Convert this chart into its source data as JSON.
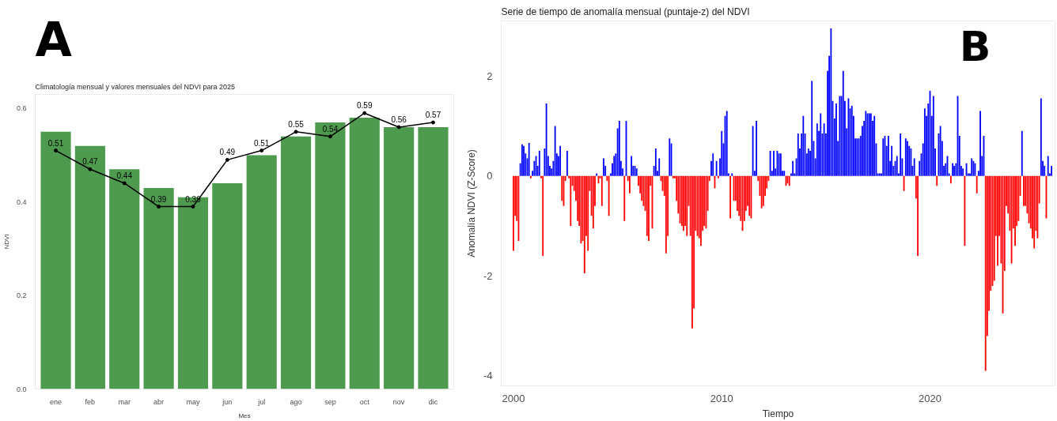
{
  "chart_data": [
    {
      "type": "bar",
      "title": "Climatología mensual y valores mensuales del NDVI para 2025",
      "annotations": [
        "A"
      ],
      "xlabel": "Mes",
      "ylabel": "NDVI",
      "categories": [
        "ene",
        "feb",
        "mar",
        "abr",
        "may",
        "jun",
        "jul",
        "ago",
        "sep",
        "oct",
        "nov",
        "dic"
      ],
      "ylim": [
        0,
        0.63
      ],
      "yticks": [
        {
          "value": 0,
          "label": "0.0"
        },
        {
          "value": 0.2,
          "label": "0.2"
        },
        {
          "value": 0.4,
          "label": "0.4"
        },
        {
          "value": 0.6,
          "label": "0.6"
        }
      ],
      "series": [
        {
          "type": "bar",
          "color": "#4e9a4e",
          "values": [
            0.55,
            0.52,
            0.47,
            0.43,
            0.41,
            0.44,
            0.5,
            0.54,
            0.57,
            0.58,
            0.56,
            0.56
          ]
        },
        {
          "type": "line",
          "color": "#000000",
          "marker": "circle",
          "values": [
            0.51,
            0.47,
            0.44,
            0.39,
            0.39,
            0.49,
            0.51,
            0.55,
            0.54,
            0.59,
            0.56,
            0.57
          ],
          "value_labels": [
            "0.51",
            "0.47",
            "0.44",
            "0.39",
            "0.39",
            "0.49",
            "0.51",
            "0.55",
            "0.54",
            "0.59",
            "0.56",
            "0.57"
          ]
        }
      ]
    },
    {
      "type": "bar",
      "title": "Serie de tiempo de anomalía mensual (puntaje-z) del NDVI",
      "annotations": [
        "B"
      ],
      "xlabel": "Tiempo",
      "ylabel": "Anomalía NDVI (Z-Score)",
      "xlim": [
        "1999-06",
        "2026-01"
      ],
      "xticks": [
        {
          "value": "2000",
          "label": "2000"
        },
        {
          "value": "2010",
          "label": "2010"
        },
        {
          "value": "2020",
          "label": "2020"
        }
      ],
      "ylim": [
        -4.2,
        3.1
      ],
      "yticks": [
        -4,
        -2,
        0,
        2
      ],
      "x": [
        "2000-01",
        "2000-02",
        "2000-03",
        "2000-04",
        "2000-05",
        "2000-06",
        "2000-07",
        "2000-08",
        "2000-09",
        "2000-10",
        "2000-11",
        "2000-12",
        "2001-01",
        "2001-02",
        "2001-03",
        "2001-04",
        "2001-05",
        "2001-06",
        "2001-07",
        "2001-08",
        "2001-09",
        "2001-10",
        "2001-11",
        "2001-12",
        "2002-01",
        "2002-02",
        "2002-03",
        "2002-04",
        "2002-05",
        "2002-06",
        "2002-07",
        "2002-08",
        "2002-09",
        "2002-10",
        "2002-11",
        "2002-12",
        "2003-01",
        "2003-02",
        "2003-03",
        "2003-04",
        "2003-05",
        "2003-06",
        "2003-07",
        "2003-08",
        "2003-09",
        "2003-10",
        "2003-11",
        "2003-12",
        "2004-01",
        "2004-02",
        "2004-03",
        "2004-04",
        "2004-05",
        "2004-06",
        "2004-07",
        "2004-08",
        "2004-09",
        "2004-10",
        "2004-11",
        "2004-12",
        "2005-01",
        "2005-02",
        "2005-03",
        "2005-04",
        "2005-05",
        "2005-06",
        "2005-07",
        "2005-08",
        "2005-09",
        "2005-10",
        "2005-11",
        "2005-12",
        "2006-01",
        "2006-02",
        "2006-03",
        "2006-04",
        "2006-05",
        "2006-06",
        "2006-07",
        "2006-08",
        "2006-09",
        "2006-10",
        "2006-11",
        "2006-12",
        "2007-01",
        "2007-02",
        "2007-03",
        "2007-04",
        "2007-05",
        "2007-06",
        "2007-07",
        "2007-08",
        "2007-09",
        "2007-10",
        "2007-11",
        "2007-12",
        "2008-01",
        "2008-02",
        "2008-03",
        "2008-04",
        "2008-05",
        "2008-06",
        "2008-07",
        "2008-08",
        "2008-09",
        "2008-10",
        "2008-11",
        "2008-12",
        "2009-01",
        "2009-02",
        "2009-03",
        "2009-04",
        "2009-05",
        "2009-06",
        "2009-07",
        "2009-08",
        "2009-09",
        "2009-10",
        "2009-11",
        "2009-12",
        "2010-01",
        "2010-02",
        "2010-03",
        "2010-04",
        "2010-05",
        "2010-06",
        "2010-07",
        "2010-08",
        "2010-09",
        "2010-10",
        "2010-11",
        "2010-12",
        "2011-01",
        "2011-02",
        "2011-03",
        "2011-04",
        "2011-05",
        "2011-06",
        "2011-07",
        "2011-08",
        "2011-09",
        "2011-10",
        "2011-11",
        "2011-12",
        "2012-01",
        "2012-02",
        "2012-03",
        "2012-04",
        "2012-05",
        "2012-06",
        "2012-07",
        "2012-08",
        "2012-09",
        "2012-10",
        "2012-11",
        "2012-12",
        "2013-01",
        "2013-02",
        "2013-03",
        "2013-04",
        "2013-05",
        "2013-06",
        "2013-07",
        "2013-08",
        "2013-09",
        "2013-10",
        "2013-11",
        "2013-12",
        "2014-01",
        "2014-02",
        "2014-03",
        "2014-04",
        "2014-05",
        "2014-06",
        "2014-07",
        "2014-08",
        "2014-09",
        "2014-10",
        "2014-11",
        "2014-12",
        "2015-01",
        "2015-02",
        "2015-03",
        "2015-04",
        "2015-05",
        "2015-06",
        "2015-07",
        "2015-08",
        "2015-09",
        "2015-10",
        "2015-11",
        "2015-12",
        "2016-01",
        "2016-02",
        "2016-03",
        "2016-04",
        "2016-05",
        "2016-06",
        "2016-07",
        "2016-08",
        "2016-09",
        "2016-10",
        "2016-11",
        "2016-12",
        "2017-01",
        "2017-02",
        "2017-03",
        "2017-04",
        "2017-05",
        "2017-06",
        "2017-07",
        "2017-08",
        "2017-09",
        "2017-10",
        "2017-11",
        "2017-12",
        "2018-01",
        "2018-02",
        "2018-03",
        "2018-04",
        "2018-05",
        "2018-06",
        "2018-07",
        "2018-08",
        "2018-09",
        "2018-10",
        "2018-11",
        "2018-12",
        "2019-01",
        "2019-02",
        "2019-03",
        "2019-04",
        "2019-05",
        "2019-06",
        "2019-07",
        "2019-08",
        "2019-09",
        "2019-10",
        "2019-11",
        "2019-12",
        "2020-01",
        "2020-02",
        "2020-03",
        "2020-04",
        "2020-05",
        "2020-06",
        "2020-07",
        "2020-08",
        "2020-09",
        "2020-10",
        "2020-11",
        "2020-12",
        "2021-01",
        "2021-02",
        "2021-03",
        "2021-04",
        "2021-05",
        "2021-06",
        "2021-07",
        "2021-08",
        "2021-09",
        "2021-10",
        "2021-11",
        "2021-12",
        "2022-01",
        "2022-02",
        "2022-03",
        "2022-04",
        "2022-05",
        "2022-06",
        "2022-07",
        "2022-08",
        "2022-09",
        "2022-10",
        "2022-11",
        "2022-12",
        "2023-01",
        "2023-02",
        "2023-03",
        "2023-04",
        "2023-05",
        "2023-06",
        "2023-07",
        "2023-08",
        "2023-09",
        "2023-10",
        "2023-11",
        "2023-12",
        "2024-01",
        "2024-02",
        "2024-03",
        "2024-04",
        "2024-05",
        "2024-06",
        "2024-07",
        "2024-08",
        "2024-09",
        "2024-10",
        "2024-11",
        "2024-12",
        "2025-01",
        "2025-02",
        "2025-03",
        "2025-04",
        "2025-05",
        "2025-06",
        "2025-07",
        "2025-08",
        "2025-09",
        "2025-10",
        "2025-11"
      ],
      "values": [
        -1.5,
        -0.8,
        -0.9,
        -1.3,
        0.25,
        0.63,
        0.6,
        0.45,
        0.35,
        0.66,
        -0.05,
        0.1,
        0.3,
        0.4,
        0.2,
        0.5,
        -0.05,
        -1.6,
        0.55,
        1.45,
        0.4,
        0.2,
        0.15,
        0.3,
        1.0,
        0.45,
        0.4,
        0.6,
        -0.5,
        -0.6,
        -0.1,
        0.5,
        -0.05,
        -1.0,
        -0.2,
        -0.3,
        -0.5,
        -0.9,
        -1.0,
        -1.35,
        -1.3,
        -1.95,
        -1.2,
        -1.5,
        -0.3,
        -0.8,
        -1.05,
        -0.6,
        0.05,
        -0.15,
        -0.05,
        -0.6,
        0.35,
        0.2,
        -0.1,
        -0.8,
        0.05,
        0.25,
        0.4,
        0.45,
        0.95,
        1.1,
        0.3,
        0.15,
        -0.9,
        1.1,
        -0.1,
        -0.35,
        0.4,
        0.2,
        0.2,
        0.15,
        -0.2,
        -0.35,
        -0.5,
        -0.6,
        -0.7,
        -1.2,
        -1.3,
        -0.2,
        -1.05,
        0.2,
        0.55,
        0.1,
        0.35,
        -0.1,
        -0.3,
        -0.4,
        -1.55,
        -1.2,
        0.75,
        0.65,
        -0.05,
        -0.05,
        -0.5,
        -0.75,
        -0.95,
        -1.0,
        -1.1,
        -1.0,
        -1.2,
        -0.6,
        -1.2,
        -3.05,
        -2.65,
        -1.1,
        -1.2,
        -1.25,
        -1.4,
        -1.1,
        -1.0,
        -1.05,
        -0.7,
        -0.1,
        0.3,
        0.45,
        -0.25,
        0.3,
        -0.05,
        0.35,
        0.9,
        0.65,
        1.2,
        1.3,
        0.05,
        -0.85,
        0.05,
        -0.5,
        -0.5,
        -0.7,
        -0.8,
        -0.9,
        -1.1,
        -0.9,
        -0.7,
        -0.6,
        -0.8,
        -0.85,
        1.0,
        0.1,
        1.1,
        -0.1,
        -0.4,
        -0.65,
        -0.6,
        -0.4,
        -0.25,
        -0.1,
        0.5,
        0.1,
        0.5,
        0.15,
        0.5,
        0.45,
        0.45,
        0.1,
        0.1,
        -0.2,
        -0.15,
        -0.2,
        0.05,
        0.3,
        0.05,
        0.35,
        0.85,
        0.55,
        0.85,
        1.2,
        0.85,
        0.45,
        0.55,
        0.5,
        1.9,
        0.7,
        0.35,
        1.05,
        0.9,
        1.25,
        0.85,
        1.05,
        0.85,
        2.1,
        2.4,
        2.95,
        1.5,
        1.15,
        1.45,
        0.7,
        1.6,
        1.6,
        2.1,
        1.5,
        0.95,
        1.55,
        1.35,
        1.4,
        1.2,
        0.75,
        0.75,
        0.75,
        0.8,
        1.0,
        1.1,
        1.3,
        1.25,
        1.25,
        1.25,
        1.1,
        1.2,
        0.65,
        0.05,
        0.05,
        0.05,
        0.75,
        0.8,
        0.6,
        0.8,
        0.3,
        0.6,
        0.2,
        0.3,
        0.4,
        0.05,
        0.85,
        0.35,
        -0.3,
        0.75,
        0.7,
        0.6,
        0.55,
        0.2,
        0.35,
        -0.45,
        -1.6,
        0.3,
        0.45,
        0.65,
        1.35,
        1.2,
        1.45,
        1.7,
        1.2,
        1.6,
        0.55,
        -0.2,
        0.85,
        1.0,
        0.7,
        0.2,
        0.25,
        0.4,
        0.05,
        -0.15,
        0.25,
        0.2,
        0.25,
        1.6,
        0.8,
        0.2,
        0.15,
        -1.4,
        0.25,
        0.05,
        0.05,
        0.35,
        0.3,
        0.25,
        -0.35,
        0.1,
        1.3,
        0.4,
        0.8,
        -3.9,
        -3.2,
        -2.7,
        -2.3,
        -2.2,
        -2.1,
        -1.2,
        -1.8,
        -1.2,
        -1.75,
        -2.75,
        -1.9,
        -0.6,
        -0.75,
        -1.1,
        -1.75,
        -1.05,
        -1.4,
        -1.0,
        -0.9,
        -0.4,
        0.9,
        -0.6,
        -0.6,
        -0.75,
        -0.95,
        -1.05,
        -1.25,
        -1.45,
        -1.1,
        -1.25,
        -0.55,
        1.55,
        0.3,
        0.2,
        -0.85,
        0.4,
        0.05,
        0.2
      ],
      "colors": [
        "#ff0000",
        "#ff0000",
        "#ff0000",
        "#ff0000",
        "#0000ff",
        "#0000ff",
        "#0000ff",
        "#0000ff",
        "#0000ff",
        "#0000ff",
        "#ff0000",
        "#0000ff",
        "#0000ff",
        "#0000ff",
        "#0000ff",
        "#0000ff",
        "#ff0000",
        "#ff0000",
        "#0000ff",
        "#0000ff",
        "#0000ff",
        "#0000ff",
        "#0000ff",
        "#0000ff",
        "#0000ff",
        "#0000ff",
        "#0000ff",
        "#0000ff",
        "#ff0000",
        "#ff0000",
        "#ff0000",
        "#0000ff",
        "#ff0000",
        "#ff0000",
        "#ff0000",
        "#ff0000",
        "#ff0000",
        "#ff0000",
        "#ff0000",
        "#ff0000",
        "#ff0000",
        "#ff0000",
        "#ff0000",
        "#ff0000",
        "#ff0000",
        "#ff0000",
        "#ff0000",
        "#ff0000",
        "#0000ff",
        "#ff0000",
        "#ff0000",
        "#ff0000",
        "#0000ff",
        "#0000ff",
        "#ff0000",
        "#ff0000",
        "#0000ff",
        "#0000ff",
        "#0000ff",
        "#0000ff",
        "#0000ff",
        "#0000ff",
        "#0000ff",
        "#0000ff",
        "#ff0000",
        "#0000ff",
        "#ff0000",
        "#ff0000",
        "#0000ff",
        "#0000ff",
        "#0000ff",
        "#0000ff",
        "#ff0000",
        "#ff0000",
        "#ff0000",
        "#ff0000",
        "#ff0000",
        "#ff0000",
        "#ff0000",
        "#ff0000",
        "#ff0000",
        "#0000ff",
        "#0000ff",
        "#0000ff",
        "#0000ff",
        "#ff0000",
        "#ff0000",
        "#ff0000",
        "#ff0000",
        "#ff0000",
        "#0000ff",
        "#0000ff",
        "#ff0000",
        "#ff0000",
        "#ff0000",
        "#ff0000",
        "#ff0000",
        "#ff0000",
        "#ff0000",
        "#ff0000",
        "#ff0000",
        "#ff0000",
        "#ff0000",
        "#ff0000",
        "#ff0000",
        "#ff0000",
        "#ff0000",
        "#ff0000",
        "#ff0000",
        "#ff0000",
        "#ff0000",
        "#ff0000",
        "#ff0000",
        "#ff0000",
        "#0000ff",
        "#0000ff",
        "#ff0000",
        "#0000ff",
        "#ff0000",
        "#0000ff",
        "#0000ff",
        "#0000ff",
        "#0000ff",
        "#0000ff",
        "#0000ff",
        "#ff0000",
        "#0000ff",
        "#ff0000",
        "#ff0000",
        "#ff0000",
        "#ff0000",
        "#ff0000",
        "#ff0000",
        "#ff0000",
        "#ff0000",
        "#ff0000",
        "#ff0000",
        "#ff0000",
        "#0000ff",
        "#0000ff",
        "#0000ff",
        "#ff0000",
        "#ff0000",
        "#ff0000",
        "#ff0000",
        "#ff0000",
        "#ff0000",
        "#ff0000",
        "#0000ff",
        "#0000ff",
        "#0000ff",
        "#0000ff",
        "#0000ff",
        "#0000ff",
        "#0000ff",
        "#0000ff",
        "#0000ff",
        "#ff0000",
        "#ff0000",
        "#ff0000",
        "#0000ff",
        "#0000ff",
        "#0000ff",
        "#0000ff",
        "#0000ff",
        "#0000ff",
        "#0000ff",
        "#0000ff",
        "#0000ff",
        "#0000ff",
        "#0000ff",
        "#0000ff",
        "#0000ff",
        "#0000ff",
        "#0000ff",
        "#0000ff",
        "#0000ff",
        "#0000ff",
        "#0000ff",
        "#0000ff",
        "#0000ff",
        "#0000ff",
        "#0000ff",
        "#0000ff",
        "#0000ff",
        "#0000ff",
        "#0000ff",
        "#0000ff",
        "#0000ff",
        "#0000ff",
        "#0000ff",
        "#0000ff",
        "#0000ff",
        "#0000ff",
        "#0000ff",
        "#0000ff",
        "#0000ff",
        "#0000ff",
        "#0000ff",
        "#0000ff",
        "#0000ff",
        "#0000ff",
        "#0000ff",
        "#0000ff",
        "#0000ff",
        "#0000ff",
        "#0000ff",
        "#0000ff",
        "#0000ff",
        "#0000ff",
        "#0000ff",
        "#0000ff",
        "#0000ff",
        "#0000ff",
        "#0000ff",
        "#0000ff",
        "#0000ff",
        "#0000ff",
        "#0000ff",
        "#0000ff",
        "#0000ff",
        "#0000ff",
        "#0000ff",
        "#0000ff",
        "#0000ff",
        "#ff0000",
        "#0000ff",
        "#0000ff",
        "#0000ff",
        "#0000ff",
        "#0000ff",
        "#0000ff",
        "#ff0000",
        "#ff0000",
        "#0000ff",
        "#0000ff",
        "#0000ff",
        "#0000ff",
        "#0000ff",
        "#0000ff",
        "#0000ff",
        "#0000ff",
        "#0000ff",
        "#0000ff",
        "#ff0000",
        "#0000ff",
        "#0000ff",
        "#0000ff",
        "#0000ff",
        "#0000ff",
        "#0000ff",
        "#0000ff",
        "#ff0000",
        "#0000ff",
        "#0000ff",
        "#0000ff",
        "#0000ff",
        "#0000ff",
        "#0000ff",
        "#0000ff",
        "#ff0000",
        "#0000ff",
        "#0000ff",
        "#0000ff",
        "#0000ff",
        "#0000ff",
        "#0000ff",
        "#ff0000",
        "#0000ff",
        "#0000ff",
        "#0000ff",
        "#0000ff",
        "#ff0000",
        "#ff0000",
        "#ff0000",
        "#ff0000",
        "#ff0000",
        "#ff0000",
        "#ff0000",
        "#ff0000",
        "#ff0000",
        "#ff0000",
        "#ff0000",
        "#ff0000",
        "#ff0000",
        "#ff0000",
        "#ff0000",
        "#ff0000",
        "#ff0000",
        "#ff0000",
        "#ff0000",
        "#ff0000",
        "#ff0000",
        "#0000ff",
        "#ff0000",
        "#ff0000",
        "#ff0000",
        "#ff0000",
        "#ff0000",
        "#ff0000",
        "#ff0000",
        "#ff0000",
        "#ff0000",
        "#ff0000",
        "#0000ff",
        "#0000ff",
        "#0000ff",
        "#ff0000",
        "#0000ff",
        "#0000ff",
        "#0000ff"
      ]
    }
  ]
}
